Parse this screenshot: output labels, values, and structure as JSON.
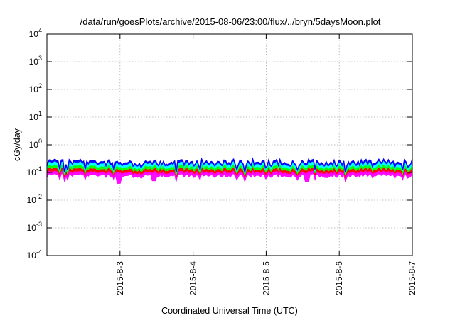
{
  "chart_data": {
    "type": "area",
    "title": "/data/run/goesPlots/archive/2015-08-06/23:00/flux/../bryn/5daysMoon.plot",
    "xlabel": "Coordinated Universal Time (UTC)",
    "ylabel": "cGy/day",
    "y_scale": "log",
    "ylim": [
      0.0001,
      10000
    ],
    "y_ticks": [
      {
        "base": "10",
        "exp": "-4",
        "value": 0.0001
      },
      {
        "base": "10",
        "exp": "-3",
        "value": 0.001
      },
      {
        "base": "10",
        "exp": "-2",
        "value": 0.01
      },
      {
        "base": "10",
        "exp": "-1",
        "value": 0.1
      },
      {
        "base": "10",
        "exp": "0",
        "value": 1
      },
      {
        "base": "10",
        "exp": "1",
        "value": 10
      },
      {
        "base": "10",
        "exp": "2",
        "value": 100
      },
      {
        "base": "10",
        "exp": "3",
        "value": 1000
      },
      {
        "base": "10",
        "exp": "4",
        "value": 10000
      }
    ],
    "xlim": [
      "2015-08-02 00:00",
      "2015-08-07 00:00"
    ],
    "x_ticks": [
      {
        "label": "2015-8-3",
        "value": "2015-08-03 00:00"
      },
      {
        "label": "2015-8-4",
        "value": "2015-08-04 00:00"
      },
      {
        "label": "2015-8-5",
        "value": "2015-08-05 00:00"
      },
      {
        "label": "2015-8-6",
        "value": "2015-08-06 00:00"
      },
      {
        "label": "2015-8-7",
        "value": "2015-08-07 00:00"
      }
    ],
    "grid": true,
    "series_colors": [
      "#ff00ff",
      "#ff0000",
      "#00ff00",
      "#00ffff",
      "#0000ff"
    ],
    "series_levels": [
      0.095,
      0.12,
      0.15,
      0.19,
      0.23
    ],
    "spikes": [
      {
        "x": "2015-08-02 23:30",
        "min": 0.04
      },
      {
        "x": "2015-08-03 11:00",
        "min": 0.05
      },
      {
        "x": "2015-08-05 13:30",
        "min": 0.045
      },
      {
        "x": "2015-08-05 20:00",
        "min": 0.065
      },
      {
        "x": "2015-08-04 11:00",
        "min": 0.07
      }
    ]
  }
}
